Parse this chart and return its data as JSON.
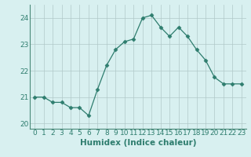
{
  "x": [
    0,
    1,
    2,
    3,
    4,
    5,
    6,
    7,
    8,
    9,
    10,
    11,
    12,
    13,
    14,
    15,
    16,
    17,
    18,
    19,
    20,
    21,
    22,
    23
  ],
  "y": [
    21.0,
    21.0,
    20.8,
    20.8,
    20.6,
    20.6,
    20.3,
    21.3,
    22.2,
    22.8,
    23.1,
    23.2,
    24.0,
    24.1,
    23.65,
    23.3,
    23.65,
    23.3,
    22.8,
    22.4,
    21.75,
    21.5,
    21.5,
    21.5
  ],
  "line_color": "#2e7d6e",
  "marker": "D",
  "marker_size": 2.5,
  "bg_color": "#d8f0f0",
  "grid_color": "#b0c8c8",
  "xlabel": "Humidex (Indice chaleur)",
  "ylim": [
    19.8,
    24.5
  ],
  "xlim": [
    -0.5,
    23.5
  ],
  "yticks": [
    20,
    21,
    22,
    23,
    24
  ],
  "xtick_labels": [
    "0",
    "1",
    "2",
    "3",
    "4",
    "5",
    "6",
    "7",
    "8",
    "9",
    "10",
    "11",
    "12",
    "13",
    "14",
    "15",
    "16",
    "17",
    "18",
    "19",
    "20",
    "21",
    "22",
    "23"
  ],
  "xlabel_fontsize": 7.5,
  "tick_fontsize": 6.5,
  "spine_color": "#4a8a7a",
  "tick_color": "#2e7d6e"
}
